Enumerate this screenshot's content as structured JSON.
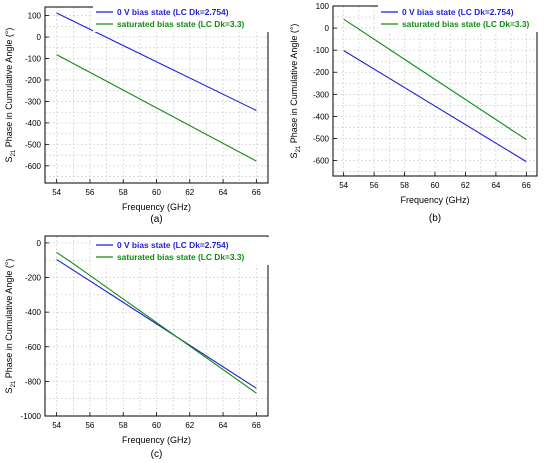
{
  "colors": {
    "series_a": "#1f1fd6",
    "series_b": "#128c12",
    "grid": "#c8c8c8",
    "frame": "#000000"
  },
  "chart_data": [
    {
      "type": "line",
      "caption": "(a)",
      "xlabel": "Frequency (GHz)",
      "ylabel_main": "S",
      "ylabel_sub": "21",
      "ylabel_rest": " Phase in Cumulative Angle  (°)",
      "xlim": [
        53.3,
        66.7
      ],
      "ylim": [
        -680,
        140
      ],
      "xticks": [
        54,
        56,
        58,
        60,
        62,
        64,
        66
      ],
      "yticks": [
        -600,
        -500,
        -400,
        -300,
        -200,
        -100,
        0,
        100
      ],
      "grid": true,
      "legend_position": "top-right",
      "series": [
        {
          "name": "0 V bias state (LC Dk=2.754)",
          "color": "#1f1fd6",
          "x": [
            54,
            66
          ],
          "y": [
            112,
            -342
          ]
        },
        {
          "name": "saturated bias state (LC Dk=3.3)",
          "color": "#128c12",
          "x": [
            54,
            66
          ],
          "y": [
            -82,
            -578
          ]
        }
      ]
    },
    {
      "type": "line",
      "caption": "(b)",
      "xlabel": "Frequency (GHz)",
      "ylabel_main": "S",
      "ylabel_sub": "21",
      "ylabel_rest": " Phase in Cumulative Angle  (°)",
      "xlim": [
        53.3,
        66.7
      ],
      "ylim": [
        -670,
        100
      ],
      "xticks": [
        54,
        56,
        58,
        60,
        62,
        64,
        66
      ],
      "yticks": [
        -600,
        -500,
        -400,
        -300,
        -200,
        -100,
        0,
        100
      ],
      "grid": true,
      "legend_position": "top-right",
      "series": [
        {
          "name": "0 V bias state (LC Dk=2.754)",
          "color": "#1f1fd6",
          "x": [
            54,
            66
          ],
          "y": [
            -102,
            -605
          ]
        },
        {
          "name": "saturated bias state (LC Dk=3.3)",
          "color": "#128c12",
          "x": [
            54,
            66
          ],
          "y": [
            40,
            -505
          ]
        }
      ]
    },
    {
      "type": "line",
      "caption": "(c)",
      "xlabel": "Frequency (GHz)",
      "ylabel_main": "S",
      "ylabel_sub": "21",
      "ylabel_rest": " Phase in Cumulative Angle  (°)",
      "xlim": [
        53.3,
        66.7
      ],
      "ylim": [
        -1000,
        40
      ],
      "xticks": [
        54,
        56,
        58,
        60,
        62,
        64,
        66
      ],
      "yticks": [
        -1000,
        -800,
        -600,
        -400,
        -200,
        0
      ],
      "grid": true,
      "legend_position": "top-right",
      "series": [
        {
          "name": "0 V bias state (LC Dk=2.754)",
          "color": "#1f1fd6",
          "x": [
            54,
            66
          ],
          "y": [
            -95,
            -840
          ]
        },
        {
          "name": "saturated bias state (LC Dk=3.3)",
          "color": "#128c12",
          "x": [
            54,
            55,
            66
          ],
          "y": [
            -55,
            -120,
            -868
          ]
        }
      ]
    }
  ]
}
